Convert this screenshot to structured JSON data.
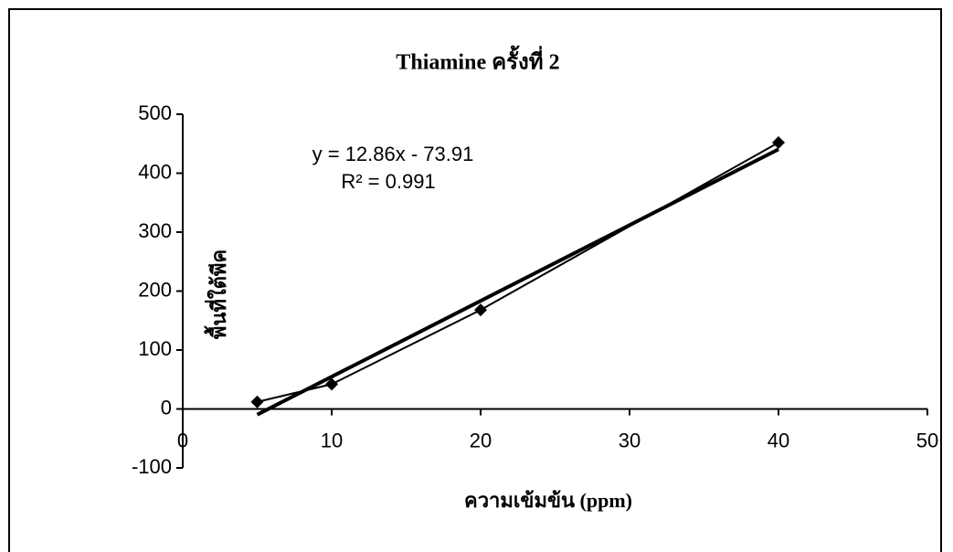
{
  "chart_data": {
    "type": "scatter",
    "title": "Thiamine ครั้งที่ 2",
    "xlabel": "ความเข้มข้น (ppm)",
    "ylabel": "พื้นที่ใต้พีค",
    "annotations": [
      "y = 12.86x - 73.91",
      "R² = 0.991"
    ],
    "x": [
      5,
      10,
      20,
      40
    ],
    "series": [
      {
        "color": "#000000",
        "values": [
          12,
          42,
          168,
          452
        ]
      }
    ],
    "trendline": {
      "color": "#000000",
      "x": [
        5,
        40
      ],
      "values": [
        -9.6,
        440.5
      ]
    },
    "xlim": [
      0,
      50
    ],
    "xticks": [
      0,
      10,
      20,
      30,
      40,
      50
    ],
    "ylim": [
      -100,
      500
    ],
    "yticks": [
      -100,
      0,
      100,
      200,
      300,
      400,
      500
    ]
  }
}
